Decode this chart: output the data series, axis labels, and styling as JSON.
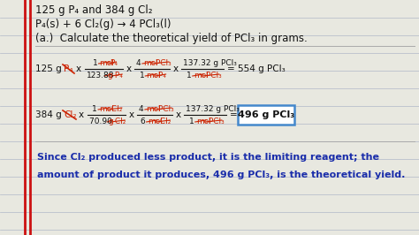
{
  "figsize": [
    4.74,
    2.66
  ],
  "dpi": 100,
  "bg_color": "#e8e8e0",
  "line_color": "#b0b8c8",
  "red_bar_color": "#cc1111",
  "text_color": "#111111",
  "blue_color": "#1a2daa",
  "red_color": "#cc2200",
  "box_color": "#4488cc",
  "header_lines": [
    "125 g P₄ and 384 g Cl₂",
    "P₄(s) + 6 Cl₂(g) → 4 PCl₃(l)",
    "(a.)  Calculate the theoretical yield of PCl₃ in grams."
  ],
  "conclusion_lines": [
    "Since Cl₂ produced less product, it is the limiting reagent; the",
    "amount of product it produces, 496 g PCl₃, is the theoretical yield."
  ]
}
